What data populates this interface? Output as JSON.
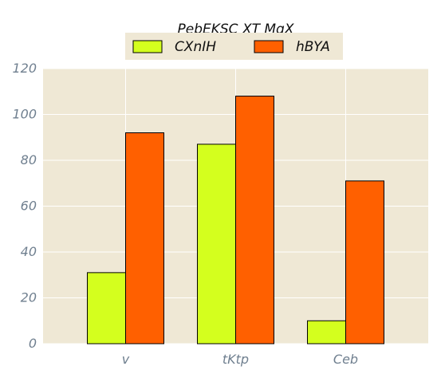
{
  "chart_data": {
    "type": "bar",
    "title": "PebEKSC XT MqX",
    "xlabel": "",
    "ylabel": "",
    "categories": [
      "v",
      "tKtp",
      "Ceb"
    ],
    "series": [
      {
        "name": "CXnIH",
        "values": [
          31,
          87,
          10
        ],
        "color": "#d4ff1e"
      },
      {
        "name": "hBYA",
        "values": [
          92,
          108,
          71
        ],
        "color": "#ff6000"
      }
    ],
    "ylim": [
      0,
      120
    ],
    "yticks": [
      0,
      20,
      40,
      60,
      80,
      100,
      120
    ],
    "grid": true,
    "legend": "top-center",
    "plot_background": "#efe8d5",
    "grid_color": "#ffffff"
  }
}
